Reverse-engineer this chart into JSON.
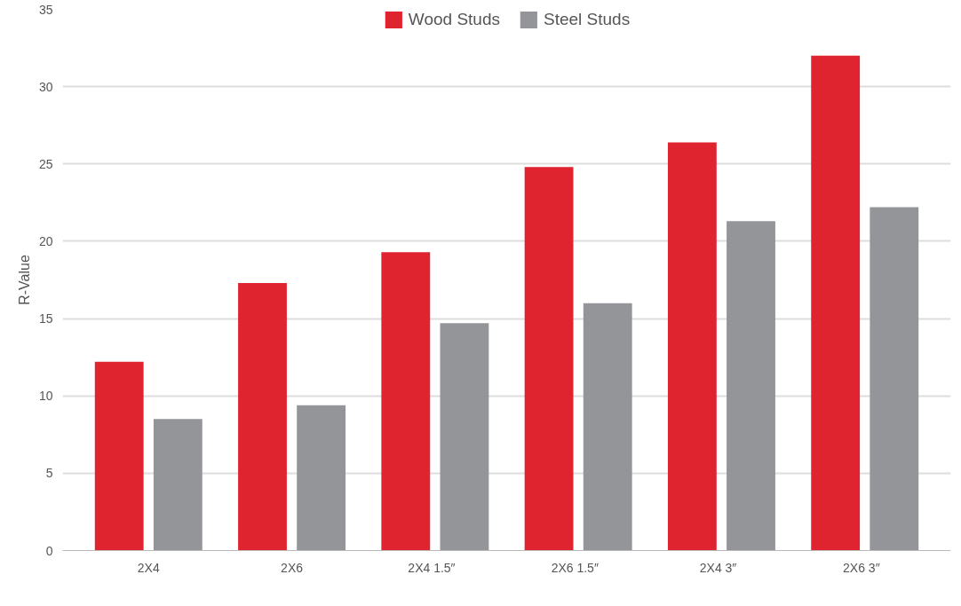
{
  "chart_data": {
    "type": "bar",
    "ylabel": "R-Value",
    "categories": [
      "2X4",
      "2X6",
      "2X4   1.5″",
      "2X6   1.5″",
      "2X4   3″",
      "2X6   3″"
    ],
    "series": [
      {
        "name": "Wood Studs",
        "color": "#e0242f",
        "values": [
          12.2,
          17.3,
          19.3,
          24.8,
          26.4,
          32.0
        ]
      },
      {
        "name": "Steel Studs",
        "color": "#939598",
        "values": [
          8.5,
          9.4,
          14.7,
          16.0,
          21.3,
          22.2
        ]
      }
    ],
    "ylim": [
      0,
      35
    ],
    "yticks": [
      0,
      5,
      10,
      15,
      20,
      25,
      30,
      35
    ],
    "grid": "y",
    "legend": "top"
  }
}
